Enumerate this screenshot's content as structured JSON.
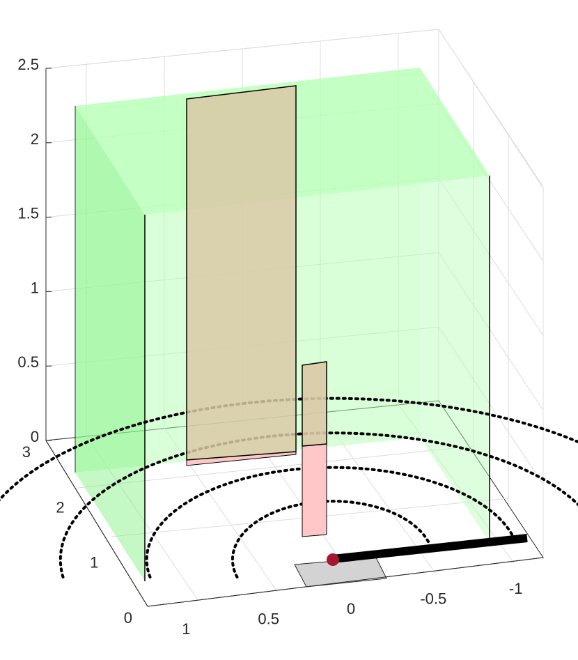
{
  "chart_data": {
    "type": "3d-surface-scene",
    "title": "",
    "xlabel": "",
    "ylabel": "",
    "zlabel": "",
    "x_ticks": [
      {
        "value": 1,
        "label": "1"
      },
      {
        "value": 0.5,
        "label": "0.5"
      },
      {
        "value": 0,
        "label": "0"
      },
      {
        "value": -0.5,
        "label": "-0.5"
      },
      {
        "value": -1,
        "label": "-1"
      }
    ],
    "y_ticks": [
      {
        "value": 0,
        "label": "0"
      },
      {
        "value": 1,
        "label": "1"
      },
      {
        "value": 2,
        "label": "2"
      },
      {
        "value": 3,
        "label": "3"
      }
    ],
    "z_ticks": [
      {
        "value": 0,
        "label": "0"
      },
      {
        "value": 0.5,
        "label": "0.5"
      },
      {
        "value": 1,
        "label": "1"
      },
      {
        "value": 1.5,
        "label": "1.5"
      },
      {
        "value": 2,
        "label": "2"
      },
      {
        "value": 2.5,
        "label": "2.5"
      }
    ],
    "xlim": [
      -1.2,
      1.2
    ],
    "ylim": [
      0,
      3
    ],
    "zlim": [
      0,
      2.5
    ],
    "grid": true,
    "colors": {
      "room_walls": "#b3ffb3",
      "tall_panel": "#d9c9a6",
      "small_panel": "#ffc7c7",
      "floor_pad": "#d3d3d3",
      "rod": "#000000",
      "source_point": "#a31830"
    },
    "arcs_radii": [
      0.55,
      1.05,
      1.55,
      2.05
    ],
    "source": {
      "x": 0.05,
      "y": 0.3,
      "z": 0
    }
  }
}
